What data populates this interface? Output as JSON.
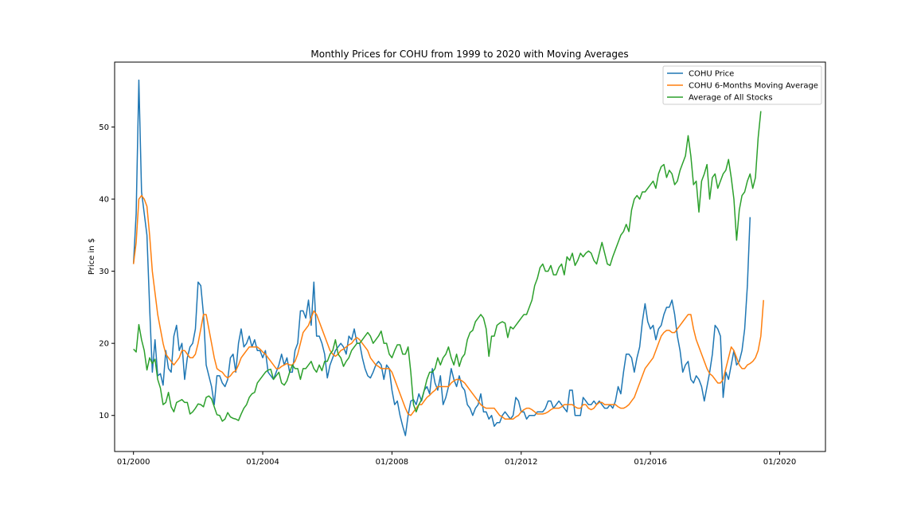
{
  "chart_data": {
    "type": "line",
    "title": "Monthly Prices for COHU from 1999 to 2020 with Moving Averages",
    "xlabel": "",
    "ylabel": "Price in $",
    "x_ticks": [
      "01/2000",
      "01/2004",
      "01/2008",
      "01/2012",
      "01/2016",
      "01/2020"
    ],
    "y_ticks": [
      10,
      20,
      30,
      40,
      50
    ],
    "xlim": [
      "1999-06",
      "2021-06"
    ],
    "ylim": [
      5,
      59
    ],
    "grid": false,
    "legend_position": "top-right",
    "x_start": "2000-01",
    "x_frequency": "monthly",
    "series": [
      {
        "name": "COHU Price",
        "color": "#1f77b4",
        "values": [
          31,
          38,
          56.5,
          41,
          38,
          35,
          25,
          16,
          20.5,
          15.5,
          15.8,
          14.2,
          19,
          16.5,
          16,
          21,
          22.5,
          19,
          20,
          15,
          18,
          19.5,
          20,
          22,
          28.5,
          28,
          24,
          17,
          15.5,
          14,
          11.5,
          15.5,
          15.5,
          14.5,
          14,
          15,
          18,
          18.5,
          16,
          20,
          22,
          19.5,
          20,
          21,
          19.5,
          20.5,
          19,
          19,
          18,
          19,
          16,
          15.5,
          15,
          16,
          17,
          18.5,
          17,
          18,
          16,
          16,
          19,
          20,
          24.5,
          24.5,
          23.5,
          26,
          22.5,
          28.5,
          21,
          21,
          20,
          18.5,
          15.2,
          17,
          18,
          19,
          19.5,
          20,
          19.5,
          18.5,
          21,
          20.5,
          22,
          20,
          20,
          18,
          16.5,
          15.5,
          15.2,
          16,
          17,
          17.5,
          17,
          15,
          17,
          16.5,
          13.5,
          11.5,
          12,
          10,
          8.5,
          7.2,
          10,
          12,
          12.2,
          11.5,
          13,
          12,
          13.5,
          14,
          13,
          16.5,
          14.5,
          13.5,
          15.5,
          11.5,
          12.5,
          14,
          16.5,
          15,
          14,
          15.5,
          14,
          13.5,
          11.5,
          11,
          10,
          11,
          11.5,
          13,
          10.5,
          10.5,
          9.5,
          10,
          8.5,
          9,
          9,
          10,
          10.5,
          10,
          9.5,
          10,
          12.5,
          12,
          10.5,
          10.5,
          9.5,
          10,
          10,
          10,
          10.5,
          10.5,
          10.5,
          11,
          12,
          12,
          11,
          11.5,
          12,
          11.5,
          11,
          10.5,
          13.5,
          13.5,
          10,
          10,
          10,
          12.5,
          12,
          11.5,
          11.5,
          12,
          11.5,
          12,
          11.5,
          11,
          11,
          11.5,
          11,
          12,
          14,
          13,
          16,
          18.5,
          18.5,
          18,
          16,
          18,
          19.5,
          23,
          25.5,
          23,
          22,
          22.5,
          20.5,
          22,
          22.5,
          24,
          25,
          25,
          26,
          24,
          21,
          19,
          16,
          17,
          17.5,
          15,
          14.5,
          15.5,
          15,
          14,
          12,
          14,
          16,
          18.5,
          22.5,
          22,
          21,
          12.5,
          16,
          15,
          17,
          19,
          17,
          17.5,
          19,
          22,
          28,
          37.5
        ]
      },
      {
        "name": "COHU 6-Months Moving Average",
        "color": "#ff7f0e",
        "values": [
          31,
          34,
          40,
          40.5,
          40,
          39,
          35,
          30,
          27,
          24,
          22,
          20,
          18.5,
          18,
          17.5,
          17,
          17.5,
          18,
          19,
          19,
          18.5,
          18,
          18,
          18.5,
          20,
          22,
          24,
          24,
          22,
          20,
          18,
          16.5,
          16.2,
          16,
          15.5,
          15.2,
          15.5,
          16,
          16.2,
          17,
          18,
          18.5,
          19,
          19.5,
          19.5,
          19.5,
          19.5,
          19.2,
          18.8,
          18.5,
          18,
          17.5,
          17,
          16.5,
          16.5,
          16.8,
          17,
          17.2,
          17,
          17,
          17.5,
          18.5,
          20,
          21.5,
          22,
          22.5,
          23.5,
          24.5,
          24,
          23,
          22,
          21,
          20,
          19,
          18.5,
          18.2,
          18.5,
          19,
          19.2,
          19.5,
          19.8,
          20,
          20.5,
          20.8,
          20.5,
          20,
          19.5,
          19,
          18,
          17.5,
          17,
          16.8,
          16.5,
          16.5,
          16.5,
          16.5,
          16,
          15,
          14,
          13,
          12,
          11,
          10.2,
          10,
          10.5,
          11,
          11.5,
          11.5,
          12,
          12.5,
          12.8,
          13.2,
          13.5,
          14,
          14,
          14,
          14,
          14,
          14.5,
          14.8,
          15,
          15,
          14.8,
          14.5,
          14,
          13.5,
          13,
          12.5,
          12,
          11.5,
          11.2,
          11,
          11,
          11,
          11,
          10.5,
          10,
          9.8,
          9.5,
          9.5,
          9.5,
          9.5,
          9.8,
          10,
          10.5,
          10.8,
          11,
          11,
          10.8,
          10.5,
          10.2,
          10.2,
          10.2,
          10.3,
          10.5,
          10.8,
          11,
          11,
          11,
          11.2,
          11.5,
          11.5,
          11.5,
          11.5,
          11.2,
          11,
          11,
          11.5,
          11.5,
          11,
          10.8,
          11,
          11.5,
          11.8,
          11.8,
          11.5,
          11.5,
          11.5,
          11.5,
          11.5,
          11.2,
          11,
          11,
          11.2,
          11.5,
          12,
          12.5,
          13.5,
          14.5,
          15.5,
          16.5,
          17,
          17.5,
          18,
          19,
          20,
          21,
          21.5,
          21.8,
          21.8,
          21.5,
          21.5,
          22,
          22.5,
          23,
          23.5,
          24,
          24,
          22,
          20.5,
          19.5,
          18.5,
          17.5,
          16.5,
          15.8,
          15.5,
          15,
          14.5,
          14.5,
          15,
          16.5,
          18,
          19.5,
          19,
          18,
          17,
          16.5,
          16.5,
          17,
          17.2,
          17.5,
          18,
          19,
          21,
          26
        ]
      },
      {
        "name": "Average of All Stocks",
        "color": "#2ca02c",
        "values": [
          19.2,
          18.8,
          22.6,
          20.5,
          19,
          16.3,
          18,
          17.2,
          17.8,
          15,
          13.8,
          11.5,
          11.8,
          13.2,
          11.2,
          10.5,
          11.8,
          12,
          12.2,
          11.8,
          11.8,
          10.2,
          10.5,
          11,
          11.6,
          11.5,
          11.2,
          12.5,
          12.7,
          12.3,
          11.2,
          10.1,
          10,
          9.2,
          9.5,
          10.4,
          9.8,
          9.6,
          9.5,
          9.3,
          10.2,
          11,
          11.5,
          12.5,
          13,
          13.2,
          14.5,
          15,
          15.5,
          16,
          16.3,
          16.4,
          15,
          15.5,
          16,
          14.5,
          14.2,
          14.8,
          16,
          17,
          16.5,
          16.5,
          15,
          16.5,
          16.5,
          17,
          17.5,
          16.5,
          16,
          17,
          16.2,
          17.5,
          17.5,
          18.5,
          19,
          20.5,
          18.5,
          18,
          16.8,
          17.5,
          18,
          19,
          19.5,
          20,
          20,
          20.5,
          21,
          21.5,
          21,
          20,
          20.5,
          21,
          21.7,
          20,
          20,
          18.5,
          18,
          19,
          19.8,
          19.8,
          18.5,
          18.5,
          19.5,
          16,
          11.5,
          10.5,
          11.5,
          12.2,
          13.5,
          15,
          16,
          16,
          16.5,
          18,
          17,
          18,
          18.5,
          19.5,
          18,
          17,
          18.5,
          16.8,
          18,
          18.5,
          20.5,
          21.5,
          21.8,
          23,
          23.5,
          24,
          23.5,
          22,
          18.2,
          21,
          21,
          22.5,
          22.8,
          23,
          22.8,
          20.8,
          22.3,
          22,
          22.5,
          23,
          23.5,
          24,
          24,
          25,
          26,
          28,
          29,
          30.5,
          31,
          30,
          30,
          30.8,
          29.5,
          29.5,
          30.5,
          31,
          29.5,
          32,
          31.5,
          32.5,
          30.8,
          31.5,
          32.5,
          32,
          32.5,
          32.8,
          32.5,
          31.5,
          31,
          32.5,
          34,
          32.5,
          31,
          30.8,
          32,
          33,
          34,
          35,
          35.5,
          36.5,
          35.5,
          38.5,
          40,
          40.5,
          40,
          41,
          41,
          41.5,
          42,
          42.5,
          41.5,
          43.5,
          44.5,
          44.8,
          43,
          44,
          43.5,
          42,
          42.5,
          44,
          45,
          46,
          48.8,
          46,
          42,
          42.5,
          38.2,
          42.5,
          43.5,
          44.8,
          40,
          43,
          43.5,
          41.5,
          42.5,
          43.5,
          44,
          45.5,
          43,
          40,
          34.3,
          38.5,
          40.5,
          41,
          42.5,
          43.5,
          41.5,
          43,
          48.5,
          52.2
        ]
      }
    ]
  }
}
